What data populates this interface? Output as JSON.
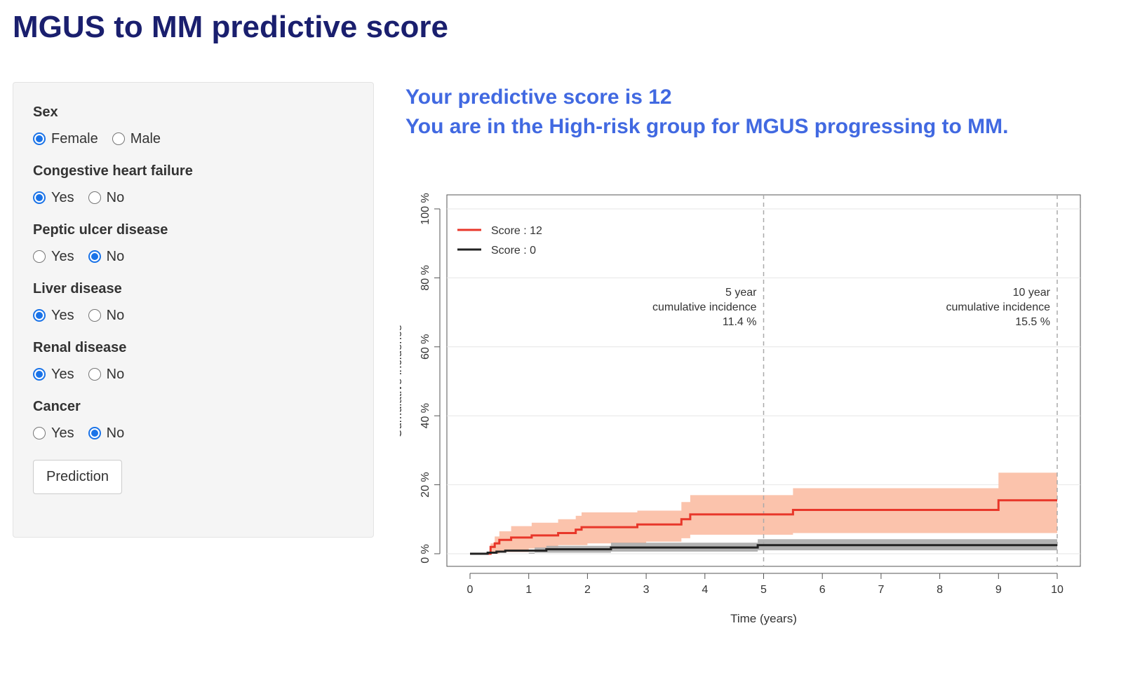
{
  "page": {
    "title": "MGUS to MM predictive score"
  },
  "form": {
    "fields": [
      {
        "label": "Sex",
        "options": [
          {
            "label": "Female",
            "checked": true
          },
          {
            "label": "Male",
            "checked": false
          }
        ]
      },
      {
        "label": "Congestive heart failure",
        "options": [
          {
            "label": "Yes",
            "checked": true
          },
          {
            "label": "No",
            "checked": false
          }
        ]
      },
      {
        "label": "Peptic ulcer disease",
        "options": [
          {
            "label": "Yes",
            "checked": false
          },
          {
            "label": "No",
            "checked": true
          }
        ]
      },
      {
        "label": "Liver disease",
        "options": [
          {
            "label": "Yes",
            "checked": true
          },
          {
            "label": "No",
            "checked": false
          }
        ]
      },
      {
        "label": "Renal disease",
        "options": [
          {
            "label": "Yes",
            "checked": true
          },
          {
            "label": "No",
            "checked": false
          }
        ]
      },
      {
        "label": "Cancer",
        "options": [
          {
            "label": "Yes",
            "checked": false
          },
          {
            "label": "No",
            "checked": true
          }
        ]
      }
    ],
    "button_label": "Prediction"
  },
  "result": {
    "line1": "Your predictive score is 12",
    "line2": "You are in the High-risk group for MGUS progressing to MM."
  },
  "colors": {
    "title": "#1a1f6e",
    "result": "#4169e1",
    "radio_checked": "#1a73e8",
    "series_high": "#e8372a",
    "band_high": "#fbc3ac",
    "series_low": "#222222",
    "band_low": "#aaaaaa"
  },
  "chart_data": {
    "type": "line",
    "xlabel": "Time (years)",
    "ylabel": "Cumulative incidence",
    "xlim": [
      0,
      10
    ],
    "ylim": [
      0,
      100
    ],
    "x_ticks": [
      "0",
      "1",
      "2",
      "3",
      "4",
      "5",
      "6",
      "7",
      "8",
      "9",
      "10"
    ],
    "y_ticks": [
      "0 %",
      "20 %",
      "40 %",
      "60 %",
      "80 %",
      "100 %"
    ],
    "grid": true,
    "legend_position": "top-left",
    "series": [
      {
        "name": "Score : 12",
        "step": [
          [
            0,
            0
          ],
          [
            0.35,
            0
          ],
          [
            0.35,
            2
          ],
          [
            0.42,
            2
          ],
          [
            0.42,
            3
          ],
          [
            0.5,
            3
          ],
          [
            0.5,
            4
          ],
          [
            0.7,
            4
          ],
          [
            0.7,
            4.7
          ],
          [
            1.05,
            4.7
          ],
          [
            1.05,
            5.3
          ],
          [
            1.5,
            5.3
          ],
          [
            1.5,
            6
          ],
          [
            1.8,
            6
          ],
          [
            1.8,
            7
          ],
          [
            1.9,
            7
          ],
          [
            1.9,
            7.7
          ],
          [
            2.85,
            7.7
          ],
          [
            2.85,
            8.5
          ],
          [
            3.6,
            8.5
          ],
          [
            3.6,
            10
          ],
          [
            3.75,
            10
          ],
          [
            3.75,
            11.4
          ],
          [
            5.5,
            11.4
          ],
          [
            5.5,
            12.7
          ],
          [
            9,
            12.7
          ],
          [
            9,
            15.5
          ],
          [
            10,
            15.5
          ]
        ],
        "lower": [
          [
            0,
            0
          ],
          [
            0.35,
            0
          ],
          [
            0.5,
            0.5
          ],
          [
            1,
            1.5
          ],
          [
            1.5,
            2.5
          ],
          [
            2,
            3
          ],
          [
            3,
            3.5
          ],
          [
            3.6,
            4.5
          ],
          [
            3.75,
            5.5
          ],
          [
            5.5,
            6
          ],
          [
            10,
            7.5
          ]
        ],
        "upper": [
          [
            0,
            0
          ],
          [
            0.35,
            0
          ],
          [
            0.35,
            3
          ],
          [
            0.42,
            5
          ],
          [
            0.5,
            6.5
          ],
          [
            0.7,
            8
          ],
          [
            1.05,
            9
          ],
          [
            1.5,
            10
          ],
          [
            1.8,
            11
          ],
          [
            1.9,
            12
          ],
          [
            2.85,
            12.5
          ],
          [
            3.6,
            15
          ],
          [
            3.75,
            17
          ],
          [
            5.5,
            19
          ],
          [
            9,
            23.5
          ],
          [
            10,
            23.5
          ]
        ]
      },
      {
        "name": "Score : 0",
        "step": [
          [
            0,
            0
          ],
          [
            0.3,
            0
          ],
          [
            0.3,
            0.3
          ],
          [
            0.45,
            0.3
          ],
          [
            0.45,
            0.6
          ],
          [
            0.6,
            0.6
          ],
          [
            0.6,
            0.9
          ],
          [
            1.3,
            0.9
          ],
          [
            1.3,
            1.3
          ],
          [
            2.4,
            1.3
          ],
          [
            2.4,
            1.8
          ],
          [
            4.9,
            1.8
          ],
          [
            4.9,
            2.5
          ],
          [
            10,
            2.5
          ]
        ],
        "lower": [
          [
            0,
            0
          ],
          [
            0.3,
            0
          ],
          [
            1,
            0.3
          ],
          [
            2.4,
            0.6
          ],
          [
            4.9,
            1
          ],
          [
            10,
            1.2
          ]
        ],
        "upper": [
          [
            0,
            0
          ],
          [
            0.3,
            0
          ],
          [
            1.1,
            1.8
          ],
          [
            1.3,
            2.3
          ],
          [
            2.4,
            3.2
          ],
          [
            4.9,
            4.2
          ],
          [
            10,
            4.2
          ]
        ]
      }
    ],
    "annotations": [
      {
        "x": 5,
        "lines": [
          "5 year",
          "cumulative incidence",
          "11.4 %"
        ]
      },
      {
        "x": 10,
        "lines": [
          "10 year",
          "cumulative incidence",
          "15.5 %"
        ]
      }
    ]
  }
}
